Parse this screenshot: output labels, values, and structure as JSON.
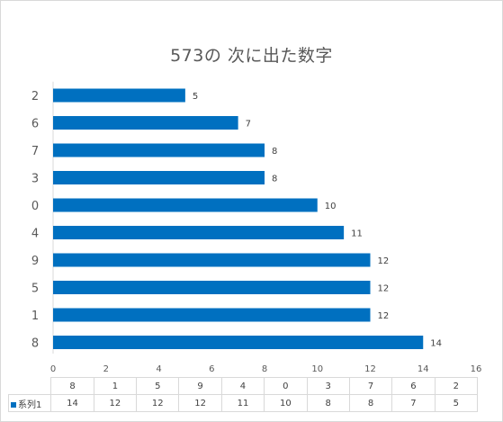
{
  "chart_data": {
    "type": "bar",
    "orientation": "horizontal",
    "title": "573の 次に出た数字",
    "categories": [
      "2",
      "6",
      "7",
      "3",
      "0",
      "4",
      "9",
      "5",
      "1",
      "8"
    ],
    "series": [
      {
        "name": "系列1",
        "values": [
          5,
          7,
          8,
          8,
          10,
          11,
          12,
          12,
          12,
          14
        ],
        "color": "#0070C0"
      }
    ],
    "xlim": [
      0,
      16
    ],
    "x_ticks": [
      0,
      2,
      4,
      6,
      8,
      10,
      12,
      14,
      16
    ],
    "data_labels": true,
    "grid": false,
    "data_table": {
      "categories": [
        "8",
        "1",
        "5",
        "9",
        "4",
        "0",
        "3",
        "7",
        "6",
        "2"
      ],
      "values": [
        14,
        12,
        12,
        12,
        11,
        10,
        8,
        8,
        7,
        5
      ]
    }
  }
}
